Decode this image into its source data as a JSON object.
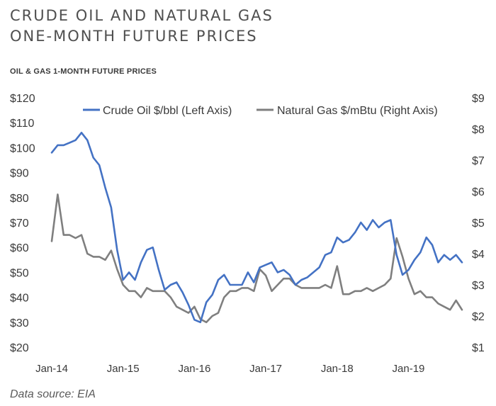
{
  "header": {
    "title_line1": "CRUDE OIL AND NATURAL GAS",
    "title_line2": "ONE-MONTH FUTURE PRICES",
    "subtitle": "OIL & GAS 1-MONTH FUTURE PRICES"
  },
  "footer": {
    "source": "Data source: EIA"
  },
  "chart_data": {
    "type": "line",
    "title": "OIL & GAS 1-MONTH FUTURE PRICES",
    "x_tick_labels": [
      "Jan-14",
      "Jan-15",
      "Jan-16",
      "Jan-17",
      "Jan-18",
      "Jan-19"
    ],
    "x_range": [
      "2014-01",
      "2019-10"
    ],
    "left_axis": {
      "ylim": [
        20,
        120
      ],
      "tick_labels": [
        "$20",
        "$30",
        "$40",
        "$50",
        "$60",
        "$70",
        "$80",
        "$90",
        "$100",
        "$110",
        "$120"
      ]
    },
    "right_axis": {
      "ylim": [
        1,
        9
      ],
      "tick_labels": [
        "$1",
        "$2",
        "$3",
        "$4",
        "$5",
        "$6",
        "$7",
        "$8",
        "$9"
      ]
    },
    "legend_position": "top",
    "grid": false,
    "series": [
      {
        "name": "Crude Oil $/bbl (Left Axis)",
        "axis": "left",
        "color": "#4472c4",
        "points": [
          [
            "2014-01",
            98
          ],
          [
            "2014-02",
            101
          ],
          [
            "2014-03",
            101
          ],
          [
            "2014-04",
            102
          ],
          [
            "2014-05",
            103
          ],
          [
            "2014-06",
            106
          ],
          [
            "2014-07",
            103
          ],
          [
            "2014-08",
            96
          ],
          [
            "2014-09",
            93
          ],
          [
            "2014-10",
            84
          ],
          [
            "2014-11",
            76
          ],
          [
            "2014-12",
            59
          ],
          [
            "2015-01",
            47
          ],
          [
            "2015-02",
            50
          ],
          [
            "2015-03",
            47
          ],
          [
            "2015-04",
            54
          ],
          [
            "2015-05",
            59
          ],
          [
            "2015-06",
            60
          ],
          [
            "2015-07",
            51
          ],
          [
            "2015-08",
            43
          ],
          [
            "2015-09",
            45
          ],
          [
            "2015-10",
            46
          ],
          [
            "2015-11",
            42
          ],
          [
            "2015-12",
            37
          ],
          [
            "2016-01",
            31
          ],
          [
            "2016-02",
            30
          ],
          [
            "2016-03",
            38
          ],
          [
            "2016-04",
            41
          ],
          [
            "2016-05",
            47
          ],
          [
            "2016-06",
            49
          ],
          [
            "2016-07",
            45
          ],
          [
            "2016-08",
            45
          ],
          [
            "2016-09",
            45
          ],
          [
            "2016-10",
            50
          ],
          [
            "2016-11",
            46
          ],
          [
            "2016-12",
            52
          ],
          [
            "2017-01",
            53
          ],
          [
            "2017-02",
            54
          ],
          [
            "2017-03",
            50
          ],
          [
            "2017-04",
            51
          ],
          [
            "2017-05",
            49
          ],
          [
            "2017-06",
            45
          ],
          [
            "2017-07",
            47
          ],
          [
            "2017-08",
            48
          ],
          [
            "2017-09",
            50
          ],
          [
            "2017-10",
            52
          ],
          [
            "2017-11",
            57
          ],
          [
            "2017-12",
            58
          ],
          [
            "2018-01",
            64
          ],
          [
            "2018-02",
            62
          ],
          [
            "2018-03",
            63
          ],
          [
            "2018-04",
            66
          ],
          [
            "2018-05",
            70
          ],
          [
            "2018-06",
            67
          ],
          [
            "2018-07",
            71
          ],
          [
            "2018-08",
            68
          ],
          [
            "2018-09",
            70
          ],
          [
            "2018-10",
            71
          ],
          [
            "2018-11",
            57
          ],
          [
            "2018-12",
            49
          ],
          [
            "2019-01",
            51
          ],
          [
            "2019-02",
            55
          ],
          [
            "2019-03",
            58
          ],
          [
            "2019-04",
            64
          ],
          [
            "2019-05",
            61
          ],
          [
            "2019-06",
            54
          ],
          [
            "2019-07",
            57
          ],
          [
            "2019-08",
            55
          ],
          [
            "2019-09",
            57
          ],
          [
            "2019-10",
            54
          ]
        ]
      },
      {
        "name": "Natural Gas $/mBtu (Right Axis)",
        "axis": "right",
        "color": "#7f7f7f",
        "points": [
          [
            "2014-01",
            4.4
          ],
          [
            "2014-02",
            5.9
          ],
          [
            "2014-03",
            4.6
          ],
          [
            "2014-04",
            4.6
          ],
          [
            "2014-05",
            4.5
          ],
          [
            "2014-06",
            4.6
          ],
          [
            "2014-07",
            4.0
          ],
          [
            "2014-08",
            3.9
          ],
          [
            "2014-09",
            3.9
          ],
          [
            "2014-10",
            3.8
          ],
          [
            "2014-11",
            4.1
          ],
          [
            "2014-12",
            3.5
          ],
          [
            "2015-01",
            3.0
          ],
          [
            "2015-02",
            2.8
          ],
          [
            "2015-03",
            2.8
          ],
          [
            "2015-04",
            2.6
          ],
          [
            "2015-05",
            2.9
          ],
          [
            "2015-06",
            2.8
          ],
          [
            "2015-07",
            2.8
          ],
          [
            "2015-08",
            2.8
          ],
          [
            "2015-09",
            2.6
          ],
          [
            "2015-10",
            2.3
          ],
          [
            "2015-11",
            2.2
          ],
          [
            "2015-12",
            2.1
          ],
          [
            "2016-01",
            2.3
          ],
          [
            "2016-02",
            1.9
          ],
          [
            "2016-03",
            1.8
          ],
          [
            "2016-04",
            2.0
          ],
          [
            "2016-05",
            2.1
          ],
          [
            "2016-06",
            2.6
          ],
          [
            "2016-07",
            2.8
          ],
          [
            "2016-08",
            2.8
          ],
          [
            "2016-09",
            2.9
          ],
          [
            "2016-10",
            2.9
          ],
          [
            "2016-11",
            2.8
          ],
          [
            "2016-12",
            3.5
          ],
          [
            "2017-01",
            3.3
          ],
          [
            "2017-02",
            2.8
          ],
          [
            "2017-03",
            3.0
          ],
          [
            "2017-04",
            3.2
          ],
          [
            "2017-05",
            3.2
          ],
          [
            "2017-06",
            3.0
          ],
          [
            "2017-07",
            2.9
          ],
          [
            "2017-08",
            2.9
          ],
          [
            "2017-09",
            2.9
          ],
          [
            "2017-10",
            2.9
          ],
          [
            "2017-11",
            3.0
          ],
          [
            "2017-12",
            2.9
          ],
          [
            "2018-01",
            3.6
          ],
          [
            "2018-02",
            2.7
          ],
          [
            "2018-03",
            2.7
          ],
          [
            "2018-04",
            2.8
          ],
          [
            "2018-05",
            2.8
          ],
          [
            "2018-06",
            2.9
          ],
          [
            "2018-07",
            2.8
          ],
          [
            "2018-08",
            2.9
          ],
          [
            "2018-09",
            3.0
          ],
          [
            "2018-10",
            3.2
          ],
          [
            "2018-11",
            4.5
          ],
          [
            "2018-12",
            3.9
          ],
          [
            "2019-01",
            3.2
          ],
          [
            "2019-02",
            2.7
          ],
          [
            "2019-03",
            2.8
          ],
          [
            "2019-04",
            2.6
          ],
          [
            "2019-05",
            2.6
          ],
          [
            "2019-06",
            2.4
          ],
          [
            "2019-07",
            2.3
          ],
          [
            "2019-08",
            2.2
          ],
          [
            "2019-09",
            2.5
          ],
          [
            "2019-10",
            2.2
          ]
        ]
      }
    ]
  }
}
